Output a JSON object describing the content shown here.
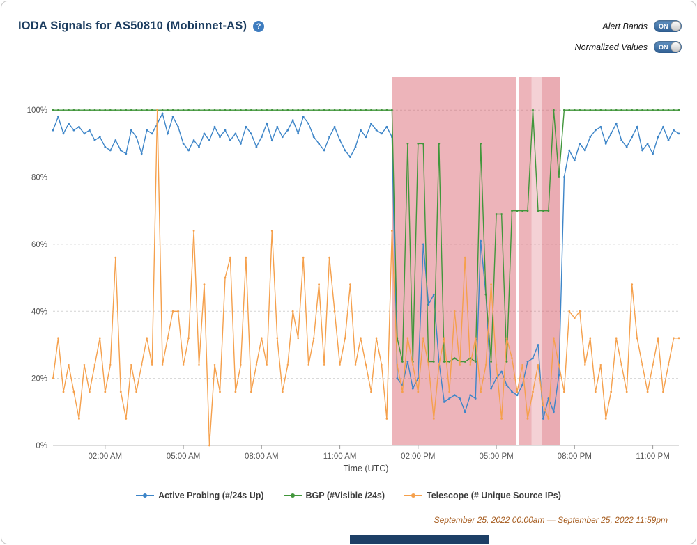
{
  "header": {
    "title": "IODA Signals for AS50810 (Mobinnet-AS)",
    "help_glyph": "?",
    "controls": [
      {
        "label": "Alert Bands",
        "state": "ON"
      },
      {
        "label": "Normalized Values",
        "state": "ON"
      }
    ]
  },
  "footer": {
    "date_range": "September 25, 2022 00:00am — September 25, 2022 11:59pm"
  },
  "chart_data": {
    "type": "line",
    "title": "IODA Signals for AS50810 (Mobinnet-AS)",
    "xlabel": "Time (UTC)",
    "ylabel": "",
    "x_unit": "hours_utc",
    "x_range": [
      0,
      24
    ],
    "ylim_pct": [
      0,
      100
    ],
    "grid": "horizontal-dashed",
    "legend_position": "bottom",
    "y_ticks": [
      "0%",
      "20%",
      "40%",
      "60%",
      "80%",
      "100%"
    ],
    "x_ticks": [
      {
        "t": 2,
        "label": "02:00 AM"
      },
      {
        "t": 5,
        "label": "05:00 AM"
      },
      {
        "t": 8,
        "label": "08:00 AM"
      },
      {
        "t": 11,
        "label": "11:00 AM"
      },
      {
        "t": 14,
        "label": "02:00 PM"
      },
      {
        "t": 17,
        "label": "05:00 PM"
      },
      {
        "t": 20,
        "label": "08:00 PM"
      },
      {
        "t": 23,
        "label": "11:00 PM"
      }
    ],
    "band_color": "#d65967",
    "alert_bands": [
      {
        "start": 13.0,
        "end": 17.75,
        "opacity": 0.45
      },
      {
        "start": 17.87,
        "end": 18.35,
        "opacity": 0.45
      },
      {
        "start": 18.35,
        "end": 18.75,
        "opacity": 0.28
      },
      {
        "start": 18.75,
        "end": 19.45,
        "opacity": 0.5
      }
    ],
    "series": [
      {
        "name": "Active Probing (#/24s Up)",
        "slug": "active-probing",
        "color": "#3d85c8",
        "values": [
          94,
          98,
          93,
          96,
          94,
          95,
          93,
          94,
          91,
          92,
          89,
          88,
          91,
          88,
          87,
          94,
          92,
          87,
          94,
          93,
          96,
          99,
          93,
          98,
          95,
          90,
          88,
          91,
          89,
          93,
          91,
          95,
          92,
          94,
          91,
          93,
          90,
          95,
          93,
          89,
          92,
          96,
          91,
          95,
          92,
          94,
          97,
          93,
          98,
          96,
          92,
          90,
          88,
          92,
          95,
          91,
          88,
          86,
          89,
          94,
          92,
          96,
          94,
          93,
          95,
          92,
          20,
          18,
          25,
          17,
          20,
          60,
          42,
          45,
          25,
          13,
          14,
          15,
          14,
          10,
          15,
          14,
          61,
          45,
          17,
          20,
          22,
          18,
          16,
          15,
          18,
          25,
          26,
          30,
          8,
          14,
          10,
          21,
          80,
          88,
          85,
          90,
          88,
          92,
          94,
          95,
          90,
          93,
          96,
          91,
          89,
          92,
          95,
          88,
          90,
          87,
          92,
          95,
          91,
          94,
          93
        ]
      },
      {
        "name": "BGP (#Visible /24s)",
        "slug": "bgp",
        "color": "#41963b",
        "values": [
          100,
          100,
          100,
          100,
          100,
          100,
          100,
          100,
          100,
          100,
          100,
          100,
          100,
          100,
          100,
          100,
          100,
          100,
          100,
          100,
          100,
          100,
          100,
          100,
          100,
          100,
          100,
          100,
          100,
          100,
          100,
          100,
          100,
          100,
          100,
          100,
          100,
          100,
          100,
          100,
          100,
          100,
          100,
          100,
          100,
          100,
          100,
          100,
          100,
          100,
          100,
          100,
          100,
          100,
          100,
          100,
          100,
          100,
          100,
          100,
          100,
          100,
          100,
          100,
          100,
          100,
          32,
          25,
          90,
          25,
          90,
          90,
          25,
          25,
          90,
          25,
          25,
          26,
          25,
          25,
          26,
          25,
          90,
          45,
          25,
          69,
          69,
          25,
          70,
          70,
          70,
          70,
          100,
          70,
          70,
          70,
          100,
          80,
          100,
          100,
          100,
          100,
          100,
          100,
          100,
          100,
          100,
          100,
          100,
          100,
          100,
          100,
          100,
          100,
          100,
          100,
          100,
          100,
          100,
          100,
          100
        ]
      },
      {
        "name": "Telescope (# Unique Source IPs)",
        "slug": "telescope",
        "color": "#f5a04c",
        "values": [
          20,
          32,
          16,
          24,
          16,
          8,
          24,
          16,
          24,
          32,
          16,
          24,
          56,
          16,
          8,
          24,
          16,
          24,
          32,
          24,
          100,
          24,
          32,
          40,
          40,
          24,
          32,
          64,
          24,
          48,
          0,
          24,
          16,
          50,
          56,
          16,
          24,
          56,
          16,
          24,
          32,
          24,
          64,
          32,
          16,
          24,
          40,
          32,
          56,
          24,
          32,
          48,
          24,
          56,
          40,
          24,
          32,
          48,
          24,
          32,
          24,
          16,
          32,
          24,
          8,
          64,
          24,
          16,
          32,
          24,
          16,
          32,
          24,
          8,
          24,
          32,
          16,
          40,
          24,
          56,
          24,
          32,
          16,
          24,
          48,
          24,
          8,
          32,
          26,
          16,
          24,
          8,
          16,
          24,
          12,
          8,
          32,
          24,
          16,
          40,
          38,
          40,
          24,
          32,
          16,
          24,
          8,
          16,
          32,
          24,
          16,
          48,
          32,
          24,
          16,
          24,
          32,
          16,
          24,
          32,
          32
        ]
      }
    ]
  }
}
